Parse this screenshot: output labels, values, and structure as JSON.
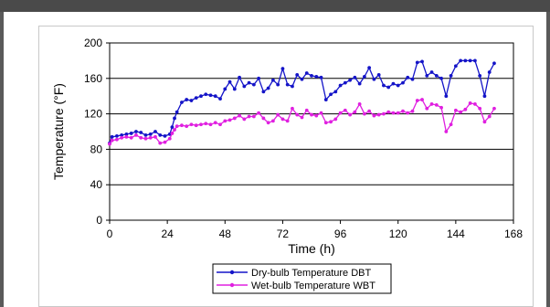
{
  "chart_data": {
    "type": "line",
    "xlabel": "Time (h)",
    "ylabel": "Temperature (°F)",
    "xlim": [
      0,
      168
    ],
    "ylim": [
      0,
      200
    ],
    "xticks": [
      0,
      24,
      48,
      72,
      96,
      120,
      144,
      168
    ],
    "yticks": [
      0,
      40,
      80,
      120,
      160,
      200
    ],
    "grid": "horizontal",
    "legend_position": "bottom-center",
    "series": [
      {
        "name": "Dry-bulb Temperature DBT",
        "color": "#1414c8",
        "points": [
          [
            0,
            87
          ],
          [
            1,
            94
          ],
          [
            3,
            95
          ],
          [
            5,
            96
          ],
          [
            7,
            97
          ],
          [
            9,
            98
          ],
          [
            11,
            100
          ],
          [
            13,
            99
          ],
          [
            15,
            96
          ],
          [
            17,
            97
          ],
          [
            19,
            100
          ],
          [
            21,
            96
          ],
          [
            23,
            95
          ],
          [
            25,
            97
          ],
          [
            26,
            105
          ],
          [
            27,
            115
          ],
          [
            28,
            122
          ],
          [
            30,
            133
          ],
          [
            32,
            136
          ],
          [
            34,
            135
          ],
          [
            36,
            138
          ],
          [
            38,
            140
          ],
          [
            40,
            142
          ],
          [
            42,
            141
          ],
          [
            44,
            140
          ],
          [
            46,
            137
          ],
          [
            48,
            148
          ],
          [
            50,
            156
          ],
          [
            52,
            148
          ],
          [
            54,
            161
          ],
          [
            56,
            151
          ],
          [
            58,
            155
          ],
          [
            60,
            153
          ],
          [
            62,
            160
          ],
          [
            64,
            145
          ],
          [
            66,
            149
          ],
          [
            68,
            158
          ],
          [
            70,
            153
          ],
          [
            72,
            171
          ],
          [
            74,
            153
          ],
          [
            76,
            151
          ],
          [
            78,
            164
          ],
          [
            80,
            159
          ],
          [
            82,
            166
          ],
          [
            84,
            163
          ],
          [
            86,
            162
          ],
          [
            88,
            161
          ],
          [
            90,
            136
          ],
          [
            92,
            142
          ],
          [
            94,
            145
          ],
          [
            96,
            152
          ],
          [
            98,
            155
          ],
          [
            100,
            158
          ],
          [
            102,
            161
          ],
          [
            104,
            154
          ],
          [
            106,
            162
          ],
          [
            108,
            172
          ],
          [
            110,
            159
          ],
          [
            112,
            164
          ],
          [
            114,
            152
          ],
          [
            116,
            150
          ],
          [
            118,
            154
          ],
          [
            120,
            152
          ],
          [
            122,
            155
          ],
          [
            124,
            161
          ],
          [
            126,
            159
          ],
          [
            128,
            178
          ],
          [
            130,
            179
          ],
          [
            132,
            163
          ],
          [
            134,
            167
          ],
          [
            136,
            163
          ],
          [
            138,
            160
          ],
          [
            140,
            140
          ],
          [
            142,
            163
          ],
          [
            144,
            174
          ],
          [
            146,
            180
          ],
          [
            148,
            180
          ],
          [
            150,
            180
          ],
          [
            152,
            180
          ],
          [
            154,
            163
          ],
          [
            156,
            140
          ],
          [
            158,
            167
          ],
          [
            160,
            177
          ]
        ]
      },
      {
        "name": "Wet-bulb Temperature WBT",
        "color": "#e020e0",
        "points": [
          [
            0,
            86
          ],
          [
            1,
            90
          ],
          [
            3,
            91
          ],
          [
            5,
            93
          ],
          [
            7,
            94
          ],
          [
            9,
            93
          ],
          [
            11,
            96
          ],
          [
            13,
            93
          ],
          [
            15,
            92
          ],
          [
            17,
            93
          ],
          [
            19,
            94
          ],
          [
            21,
            87
          ],
          [
            23,
            88
          ],
          [
            25,
            92
          ],
          [
            26,
            98
          ],
          [
            27,
            102
          ],
          [
            28,
            106
          ],
          [
            30,
            107
          ],
          [
            32,
            106
          ],
          [
            34,
            108
          ],
          [
            36,
            107
          ],
          [
            38,
            108
          ],
          [
            40,
            109
          ],
          [
            42,
            108
          ],
          [
            44,
            110
          ],
          [
            46,
            108
          ],
          [
            48,
            112
          ],
          [
            50,
            113
          ],
          [
            52,
            115
          ],
          [
            54,
            118
          ],
          [
            56,
            114
          ],
          [
            58,
            117
          ],
          [
            60,
            117
          ],
          [
            62,
            121
          ],
          [
            64,
            115
          ],
          [
            66,
            110
          ],
          [
            68,
            112
          ],
          [
            70,
            119
          ],
          [
            72,
            114
          ],
          [
            74,
            112
          ],
          [
            76,
            126
          ],
          [
            78,
            119
          ],
          [
            80,
            116
          ],
          [
            82,
            124
          ],
          [
            84,
            119
          ],
          [
            86,
            118
          ],
          [
            88,
            121
          ],
          [
            90,
            110
          ],
          [
            92,
            111
          ],
          [
            94,
            114
          ],
          [
            96,
            121
          ],
          [
            98,
            124
          ],
          [
            100,
            119
          ],
          [
            102,
            122
          ],
          [
            104,
            131
          ],
          [
            106,
            120
          ],
          [
            108,
            123
          ],
          [
            110,
            118
          ],
          [
            112,
            119
          ],
          [
            114,
            120
          ],
          [
            116,
            122
          ],
          [
            118,
            121
          ],
          [
            120,
            121
          ],
          [
            122,
            123
          ],
          [
            124,
            121
          ],
          [
            126,
            123
          ],
          [
            128,
            135
          ],
          [
            130,
            136
          ],
          [
            132,
            126
          ],
          [
            134,
            131
          ],
          [
            136,
            130
          ],
          [
            138,
            127
          ],
          [
            140,
            100
          ],
          [
            142,
            108
          ],
          [
            144,
            124
          ],
          [
            146,
            122
          ],
          [
            148,
            125
          ],
          [
            150,
            132
          ],
          [
            152,
            131
          ],
          [
            154,
            126
          ],
          [
            156,
            111
          ],
          [
            158,
            117
          ],
          [
            160,
            126
          ]
        ]
      }
    ]
  }
}
